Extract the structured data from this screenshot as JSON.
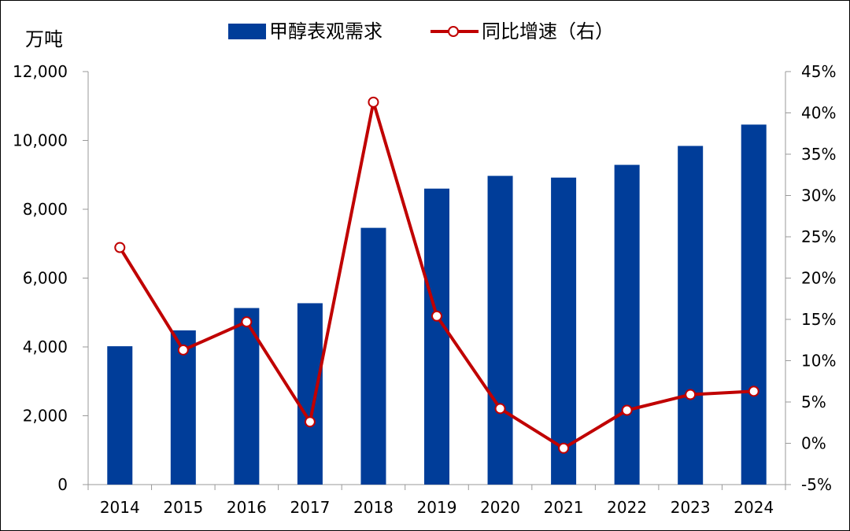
{
  "chart_data": {
    "type": "bar+line",
    "categories": [
      "2014",
      "2015",
      "2016",
      "2017",
      "2018",
      "2019",
      "2020",
      "2021",
      "2022",
      "2023",
      "2024"
    ],
    "series": [
      {
        "name": "甲醇表观需求",
        "type": "bar",
        "axis": "left",
        "color": "#003d99",
        "values": [
          4020,
          4480,
          5130,
          5270,
          7460,
          8600,
          8970,
          8920,
          9290,
          9840,
          10460
        ]
      },
      {
        "name": "同比增速（右）",
        "type": "line",
        "axis": "right",
        "color": "#c00000",
        "values": [
          23.7,
          11.3,
          14.7,
          2.6,
          41.3,
          15.4,
          4.2,
          -0.6,
          4.0,
          5.9,
          6.3
        ]
      }
    ],
    "y_left": {
      "label": "万吨",
      "range": [
        0,
        12000
      ],
      "ticks": [
        "0",
        "2,000",
        "4,000",
        "6,000",
        "8,000",
        "10,000",
        "12,000"
      ]
    },
    "y_right": {
      "range": [
        -5,
        45
      ],
      "ticks": [
        "-5%",
        "0%",
        "5%",
        "10%",
        "15%",
        "20%",
        "25%",
        "30%",
        "35%",
        "40%",
        "45%"
      ]
    },
    "grid": false,
    "legend_position": "top-center"
  }
}
